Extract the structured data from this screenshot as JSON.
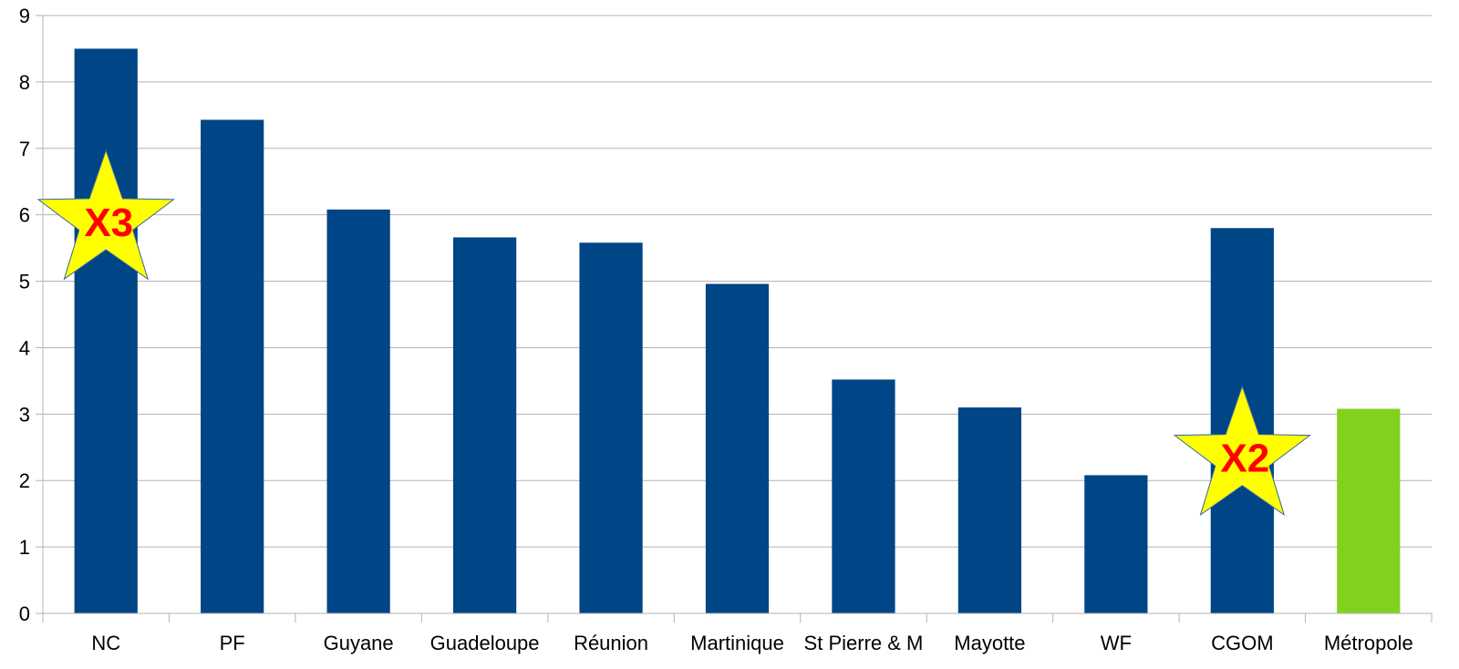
{
  "chart_data": {
    "type": "bar",
    "title": "",
    "xlabel": "",
    "ylabel": "",
    "categories": [
      "NC",
      "PF",
      "Guyane",
      "Guadeloupe",
      "Réunion",
      "Martinique",
      "St Pierre & M",
      "Mayotte",
      "WF",
      "CGOM",
      "Métropole"
    ],
    "values": [
      8.5,
      7.43,
      6.08,
      5.66,
      5.58,
      4.96,
      3.52,
      3.1,
      2.08,
      5.8,
      3.08
    ],
    "ylim": [
      0,
      9
    ],
    "yticks": [
      0,
      1,
      2,
      3,
      4,
      5,
      6,
      7,
      8,
      9
    ],
    "grid": true,
    "legend": "none",
    "colors": {
      "default": "#004586",
      "highlight": "#83d11f",
      "star_fill": "#ffff00",
      "star_text": "#ff0000"
    },
    "bar_colors": [
      "default",
      "default",
      "default",
      "default",
      "default",
      "default",
      "default",
      "default",
      "default",
      "default",
      "highlight"
    ],
    "annotations": [
      {
        "label": "X3",
        "category": "NC",
        "y": 5.9,
        "shape": "star"
      },
      {
        "label": "X2",
        "category": "CGOM",
        "y": 2.35,
        "shape": "star"
      }
    ]
  }
}
